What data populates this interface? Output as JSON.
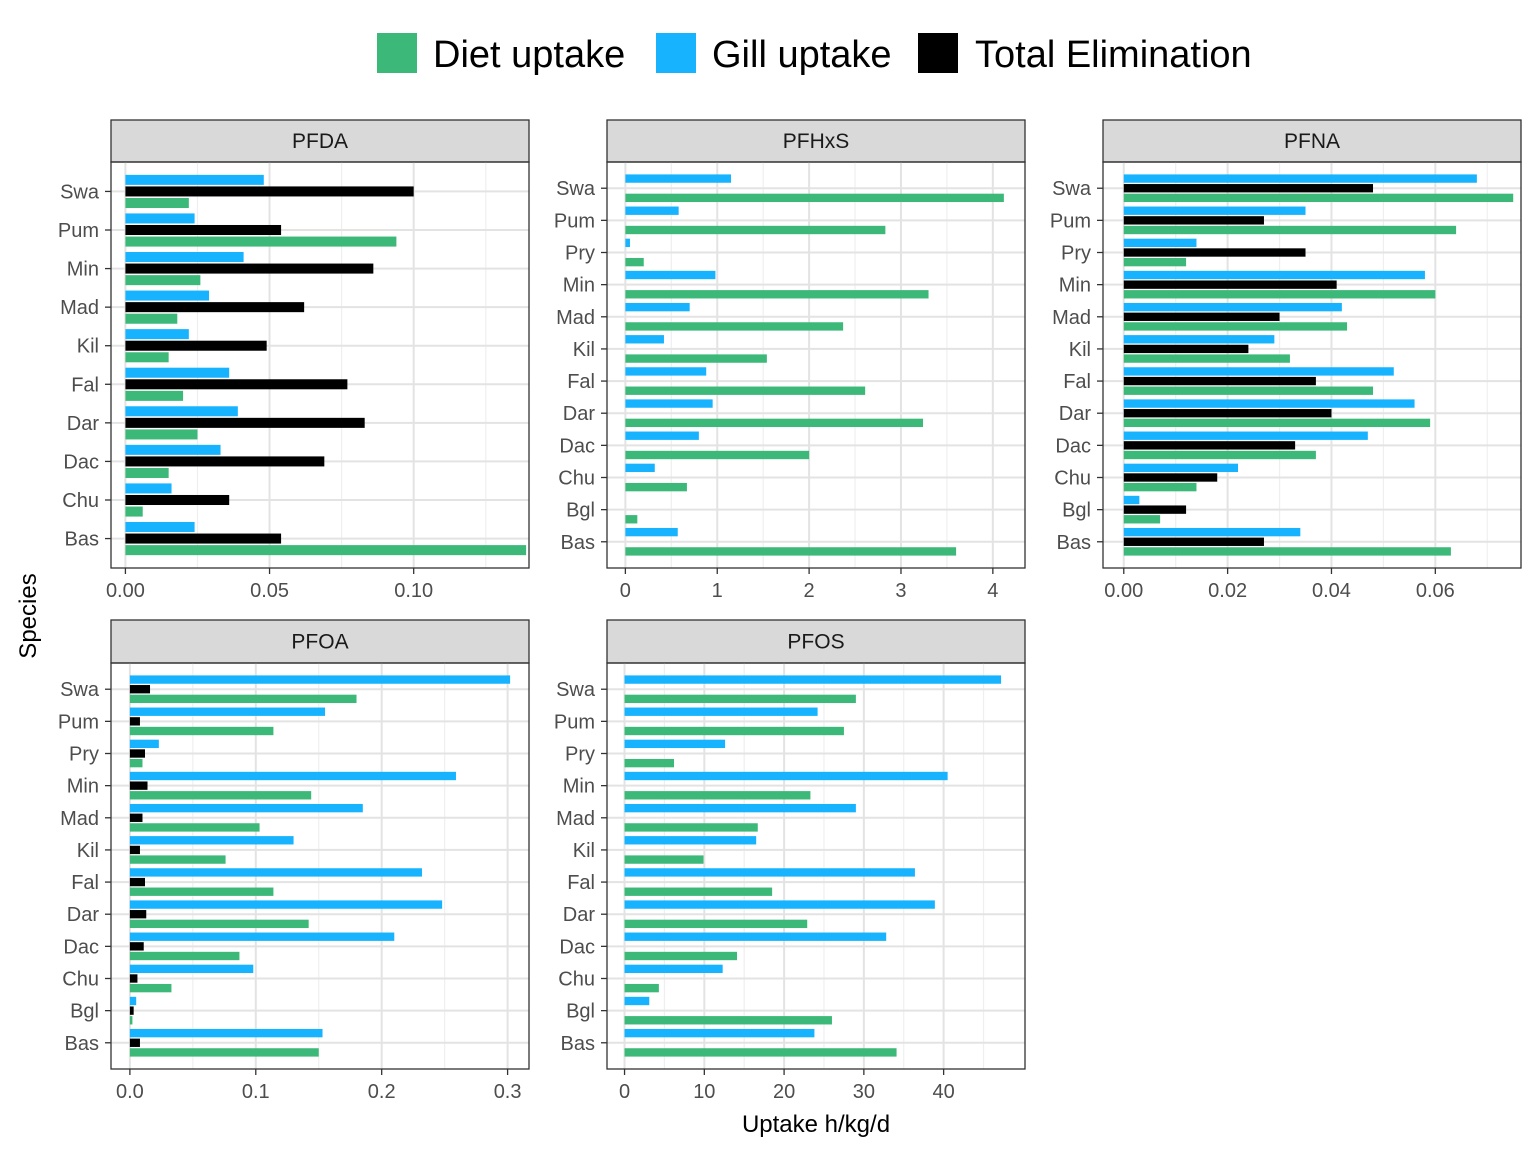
{
  "legend": [
    {
      "key": "diet",
      "label": "Diet uptake",
      "color": "#3CB878"
    },
    {
      "key": "gill",
      "label": "Gill uptake",
      "color": "#17B3FF"
    },
    {
      "key": "elim",
      "label": "Total Elimination",
      "color": "#000000"
    }
  ],
  "axes": {
    "x_title": "Uptake h/kg/d",
    "y_title": "Species"
  },
  "chart_data": [
    {
      "type": "bar",
      "panel": "PFDA",
      "categories": [
        "Swa",
        "Pum",
        "Min",
        "Mad",
        "Kil",
        "Fal",
        "Dar",
        "Dac",
        "Chu",
        "Bas"
      ],
      "xlim": [
        -0.005,
        0.14
      ],
      "xticks": [
        0,
        0.05,
        0.1
      ],
      "xtick_labels": [
        "0.00",
        "0.05",
        "0.10"
      ],
      "series": [
        {
          "name": "Gill uptake",
          "key": "gill",
          "values": [
            0.048,
            0.024,
            0.041,
            0.029,
            0.022,
            0.036,
            0.039,
            0.033,
            0.016,
            0.024
          ]
        },
        {
          "name": "Total Elimination",
          "key": "elim",
          "values": [
            0.1,
            0.054,
            0.086,
            0.062,
            0.049,
            0.077,
            0.083,
            0.069,
            0.036,
            0.054
          ]
        },
        {
          "name": "Diet uptake",
          "key": "diet",
          "values": [
            0.022,
            0.094,
            0.026,
            0.018,
            0.015,
            0.02,
            0.025,
            0.015,
            0.006,
            0.139
          ]
        }
      ]
    },
    {
      "type": "bar",
      "panel": "PFHxS",
      "categories": [
        "Swa",
        "Pum",
        "Pry",
        "Min",
        "Mad",
        "Kil",
        "Fal",
        "Dar",
        "Dac",
        "Chu",
        "Bgl",
        "Bas"
      ],
      "xlim": [
        -0.2,
        4.35
      ],
      "xticks": [
        0,
        1,
        2,
        3,
        4
      ],
      "xtick_labels": [
        "0",
        "1",
        "2",
        "3",
        "4"
      ],
      "series": [
        {
          "name": "Gill uptake",
          "key": "gill",
          "values": [
            1.15,
            0.58,
            0.05,
            0.98,
            0.7,
            0.42,
            0.88,
            0.95,
            0.8,
            0.32,
            0,
            0.57
          ]
        },
        {
          "name": "Total Elimination",
          "key": "elim",
          "values": [
            0,
            0,
            0,
            0,
            0,
            0,
            0,
            0,
            0,
            0,
            0,
            0
          ]
        },
        {
          "name": "Diet uptake",
          "key": "diet",
          "values": [
            4.12,
            2.83,
            0.2,
            3.3,
            2.37,
            1.54,
            2.61,
            3.24,
            2.0,
            0.67,
            0.13,
            3.6
          ]
        }
      ]
    },
    {
      "type": "bar",
      "panel": "PFNA",
      "categories": [
        "Swa",
        "Pum",
        "Pry",
        "Min",
        "Mad",
        "Kil",
        "Fal",
        "Dar",
        "Dac",
        "Chu",
        "Bgl",
        "Bas"
      ],
      "xlim": [
        -0.004,
        0.0765
      ],
      "xticks": [
        0,
        0.02,
        0.04,
        0.06
      ],
      "xtick_labels": [
        "0.00",
        "0.02",
        "0.04",
        "0.06"
      ],
      "series": [
        {
          "name": "Gill uptake",
          "key": "gill",
          "values": [
            0.068,
            0.035,
            0.014,
            0.058,
            0.042,
            0.029,
            0.052,
            0.056,
            0.047,
            0.022,
            0.003,
            0.034
          ]
        },
        {
          "name": "Total Elimination",
          "key": "elim",
          "values": [
            0.048,
            0.027,
            0.035,
            0.041,
            0.03,
            0.024,
            0.037,
            0.04,
            0.033,
            0.018,
            0.012,
            0.027
          ]
        },
        {
          "name": "Diet uptake",
          "key": "diet",
          "values": [
            0.075,
            0.064,
            0.012,
            0.06,
            0.043,
            0.032,
            0.048,
            0.059,
            0.037,
            0.014,
            0.007,
            0.063
          ]
        }
      ]
    },
    {
      "type": "bar",
      "panel": "PFOA",
      "categories": [
        "Swa",
        "Pum",
        "Pry",
        "Min",
        "Mad",
        "Kil",
        "Fal",
        "Dar",
        "Dac",
        "Chu",
        "Bgl",
        "Bas"
      ],
      "xlim": [
        -0.015,
        0.317
      ],
      "xticks": [
        0,
        0.1,
        0.2,
        0.3
      ],
      "xtick_labels": [
        "0.0",
        "0.1",
        "0.2",
        "0.3"
      ],
      "series": [
        {
          "name": "Gill uptake",
          "key": "gill",
          "values": [
            0.302,
            0.155,
            0.023,
            0.259,
            0.185,
            0.13,
            0.232,
            0.248,
            0.21,
            0.098,
            0.005,
            0.153
          ]
        },
        {
          "name": "Total Elimination",
          "key": "elim",
          "values": [
            0.016,
            0.008,
            0.012,
            0.014,
            0.01,
            0.008,
            0.012,
            0.013,
            0.011,
            0.006,
            0.003,
            0.008
          ]
        },
        {
          "name": "Diet uptake",
          "key": "diet",
          "values": [
            0.18,
            0.114,
            0.01,
            0.144,
            0.103,
            0.076,
            0.114,
            0.142,
            0.087,
            0.033,
            0.002,
            0.15
          ]
        }
      ]
    },
    {
      "type": "bar",
      "panel": "PFOS",
      "categories": [
        "Swa",
        "Pum",
        "Pry",
        "Min",
        "Mad",
        "Kil",
        "Fal",
        "Dar",
        "Dac",
        "Chu",
        "Bgl",
        "Bas"
      ],
      "xlim": [
        -2.2,
        50.2
      ],
      "xticks": [
        0,
        10,
        20,
        30,
        40
      ],
      "xtick_labels": [
        "0",
        "10",
        "20",
        "30",
        "40"
      ],
      "series": [
        {
          "name": "Gill uptake",
          "key": "gill",
          "values": [
            47.2,
            24.2,
            12.6,
            40.5,
            29.0,
            16.5,
            36.4,
            38.9,
            32.8,
            12.3,
            3.1,
            23.8
          ]
        },
        {
          "name": "Total Elimination",
          "key": "elim",
          "values": [
            0,
            0,
            0,
            0,
            0,
            0,
            0,
            0,
            0,
            0,
            0,
            0
          ]
        },
        {
          "name": "Diet uptake",
          "key": "diet",
          "values": [
            29.0,
            27.5,
            6.2,
            23.3,
            16.7,
            9.9,
            18.5,
            22.9,
            14.1,
            4.3,
            26.0,
            34.1
          ]
        }
      ]
    }
  ]
}
